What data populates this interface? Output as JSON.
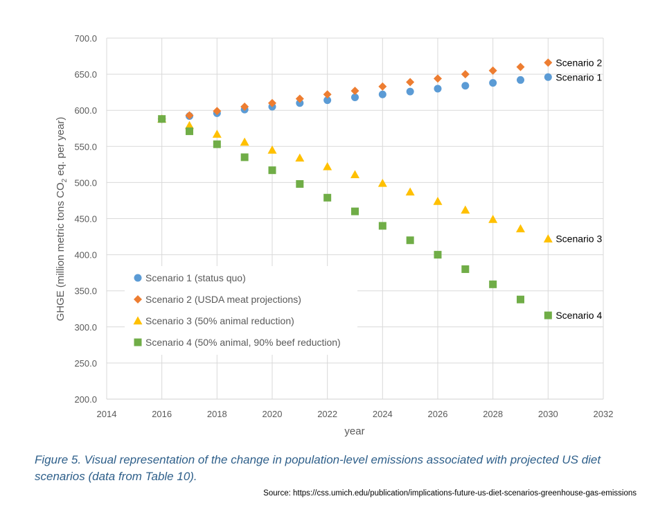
{
  "chart_data": {
    "type": "scatter",
    "title": "",
    "xlabel": "year",
    "ylabel": "GHGE (million metric tons CO2 eq. per year)",
    "ylabel_parts": {
      "pre": "GHGE (million metric tons CO",
      "sub": "2",
      "post": " eq. per year)"
    },
    "xlim": [
      2014,
      2032
    ],
    "ylim": [
      200,
      700
    ],
    "x_ticks": [
      "2014",
      "2016",
      "2018",
      "2020",
      "2022",
      "2024",
      "2026",
      "2028",
      "2030",
      "2032"
    ],
    "y_ticks": [
      "200.0",
      "250.0",
      "300.0",
      "350.0",
      "400.0",
      "450.0",
      "500.0",
      "550.0",
      "600.0",
      "650.0",
      "700.0"
    ],
    "grid": true,
    "legend_position": "bottom-left",
    "series": [
      {
        "name": "Scenario 1 (status quo)",
        "end_label": "Scenario 1",
        "marker": "circle",
        "color": "#5b9bd5",
        "x": [
          2016,
          2017,
          2018,
          2019,
          2020,
          2021,
          2022,
          2023,
          2024,
          2025,
          2026,
          2027,
          2028,
          2029,
          2030
        ],
        "y": [
          588,
          592,
          596,
          601,
          605,
          610,
          614,
          618,
          622,
          626,
          630,
          634,
          638,
          642,
          646
        ]
      },
      {
        "name": "Scenario 2 (USDA meat projections)",
        "end_label": "Scenario 2",
        "marker": "diamond",
        "color": "#ed7d31",
        "x": [
          2016,
          2017,
          2018,
          2019,
          2020,
          2021,
          2022,
          2023,
          2024,
          2025,
          2026,
          2027,
          2028,
          2029,
          2030
        ],
        "y": [
          588,
          593,
          599,
          605,
          610,
          616,
          622,
          627,
          633,
          639,
          644,
          650,
          655,
          660,
          666
        ]
      },
      {
        "name": "Scenario 3 (50% animal reduction)",
        "end_label": "Scenario 3",
        "marker": "triangle",
        "color": "#ffc000",
        "x": [
          2016,
          2017,
          2018,
          2019,
          2020,
          2021,
          2022,
          2023,
          2024,
          2025,
          2026,
          2027,
          2028,
          2029,
          2030
        ],
        "y": [
          588,
          579,
          567,
          556,
          545,
          534,
          522,
          511,
          499,
          487,
          474,
          462,
          449,
          436,
          422
        ]
      },
      {
        "name": "Scenario 4 (50% animal, 90% beef reduction)",
        "end_label": "Scenario 4",
        "marker": "square",
        "color": "#70ad47",
        "x": [
          2016,
          2017,
          2018,
          2019,
          2020,
          2021,
          2022,
          2023,
          2024,
          2025,
          2026,
          2027,
          2028,
          2029,
          2030
        ],
        "y": [
          588,
          571,
          553,
          535,
          517,
          498,
          479,
          460,
          440,
          420,
          400,
          380,
          359,
          338,
          316
        ]
      }
    ]
  },
  "caption": "Figure 5. Visual representation of the change in population-level emissions associated with projected US diet scenarios (data from Table 10).",
  "source": "Source: https://css.umich.edu/publication/implications-future-us-diet-scenarios-greenhouse-gas-emissions",
  "colors": {
    "grid": "#d9d9d9",
    "caption": "#2e5f8a",
    "text": "#595959"
  }
}
